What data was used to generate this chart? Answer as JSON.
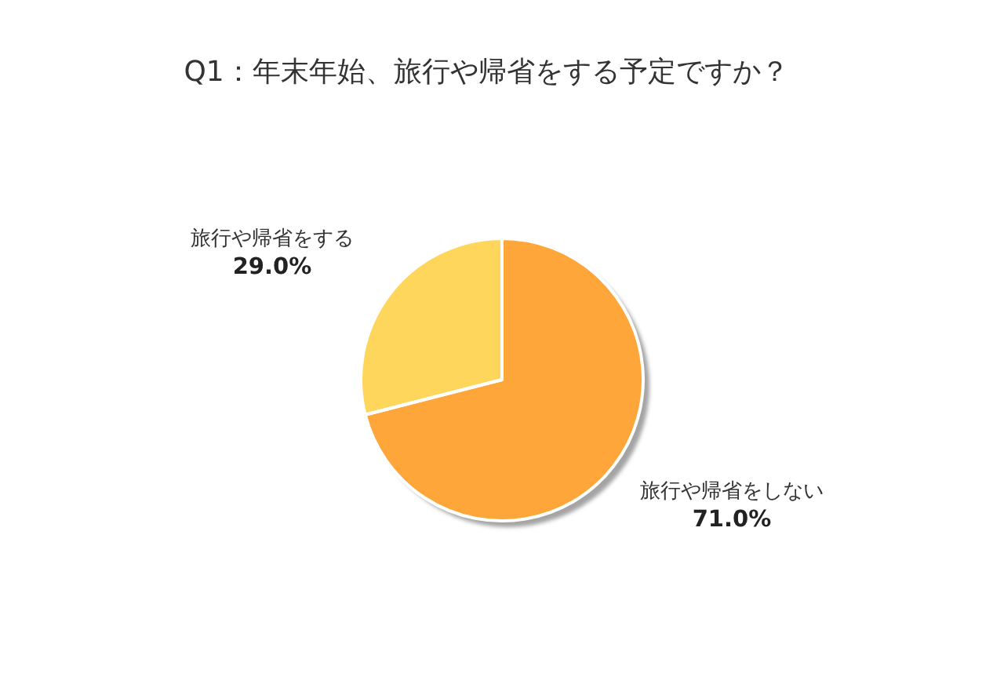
{
  "chart_data": {
    "type": "pie",
    "title": "Q1：年末年始、旅行や帰省をする予定ですか？",
    "categories": [
      "旅行や帰省をしない",
      "旅行や帰省をする"
    ],
    "values": [
      71.0,
      29.0
    ],
    "colors": [
      "#ffa63a",
      "#ffd65c"
    ],
    "value_labels": [
      "71.0%",
      "29.0%"
    ]
  }
}
